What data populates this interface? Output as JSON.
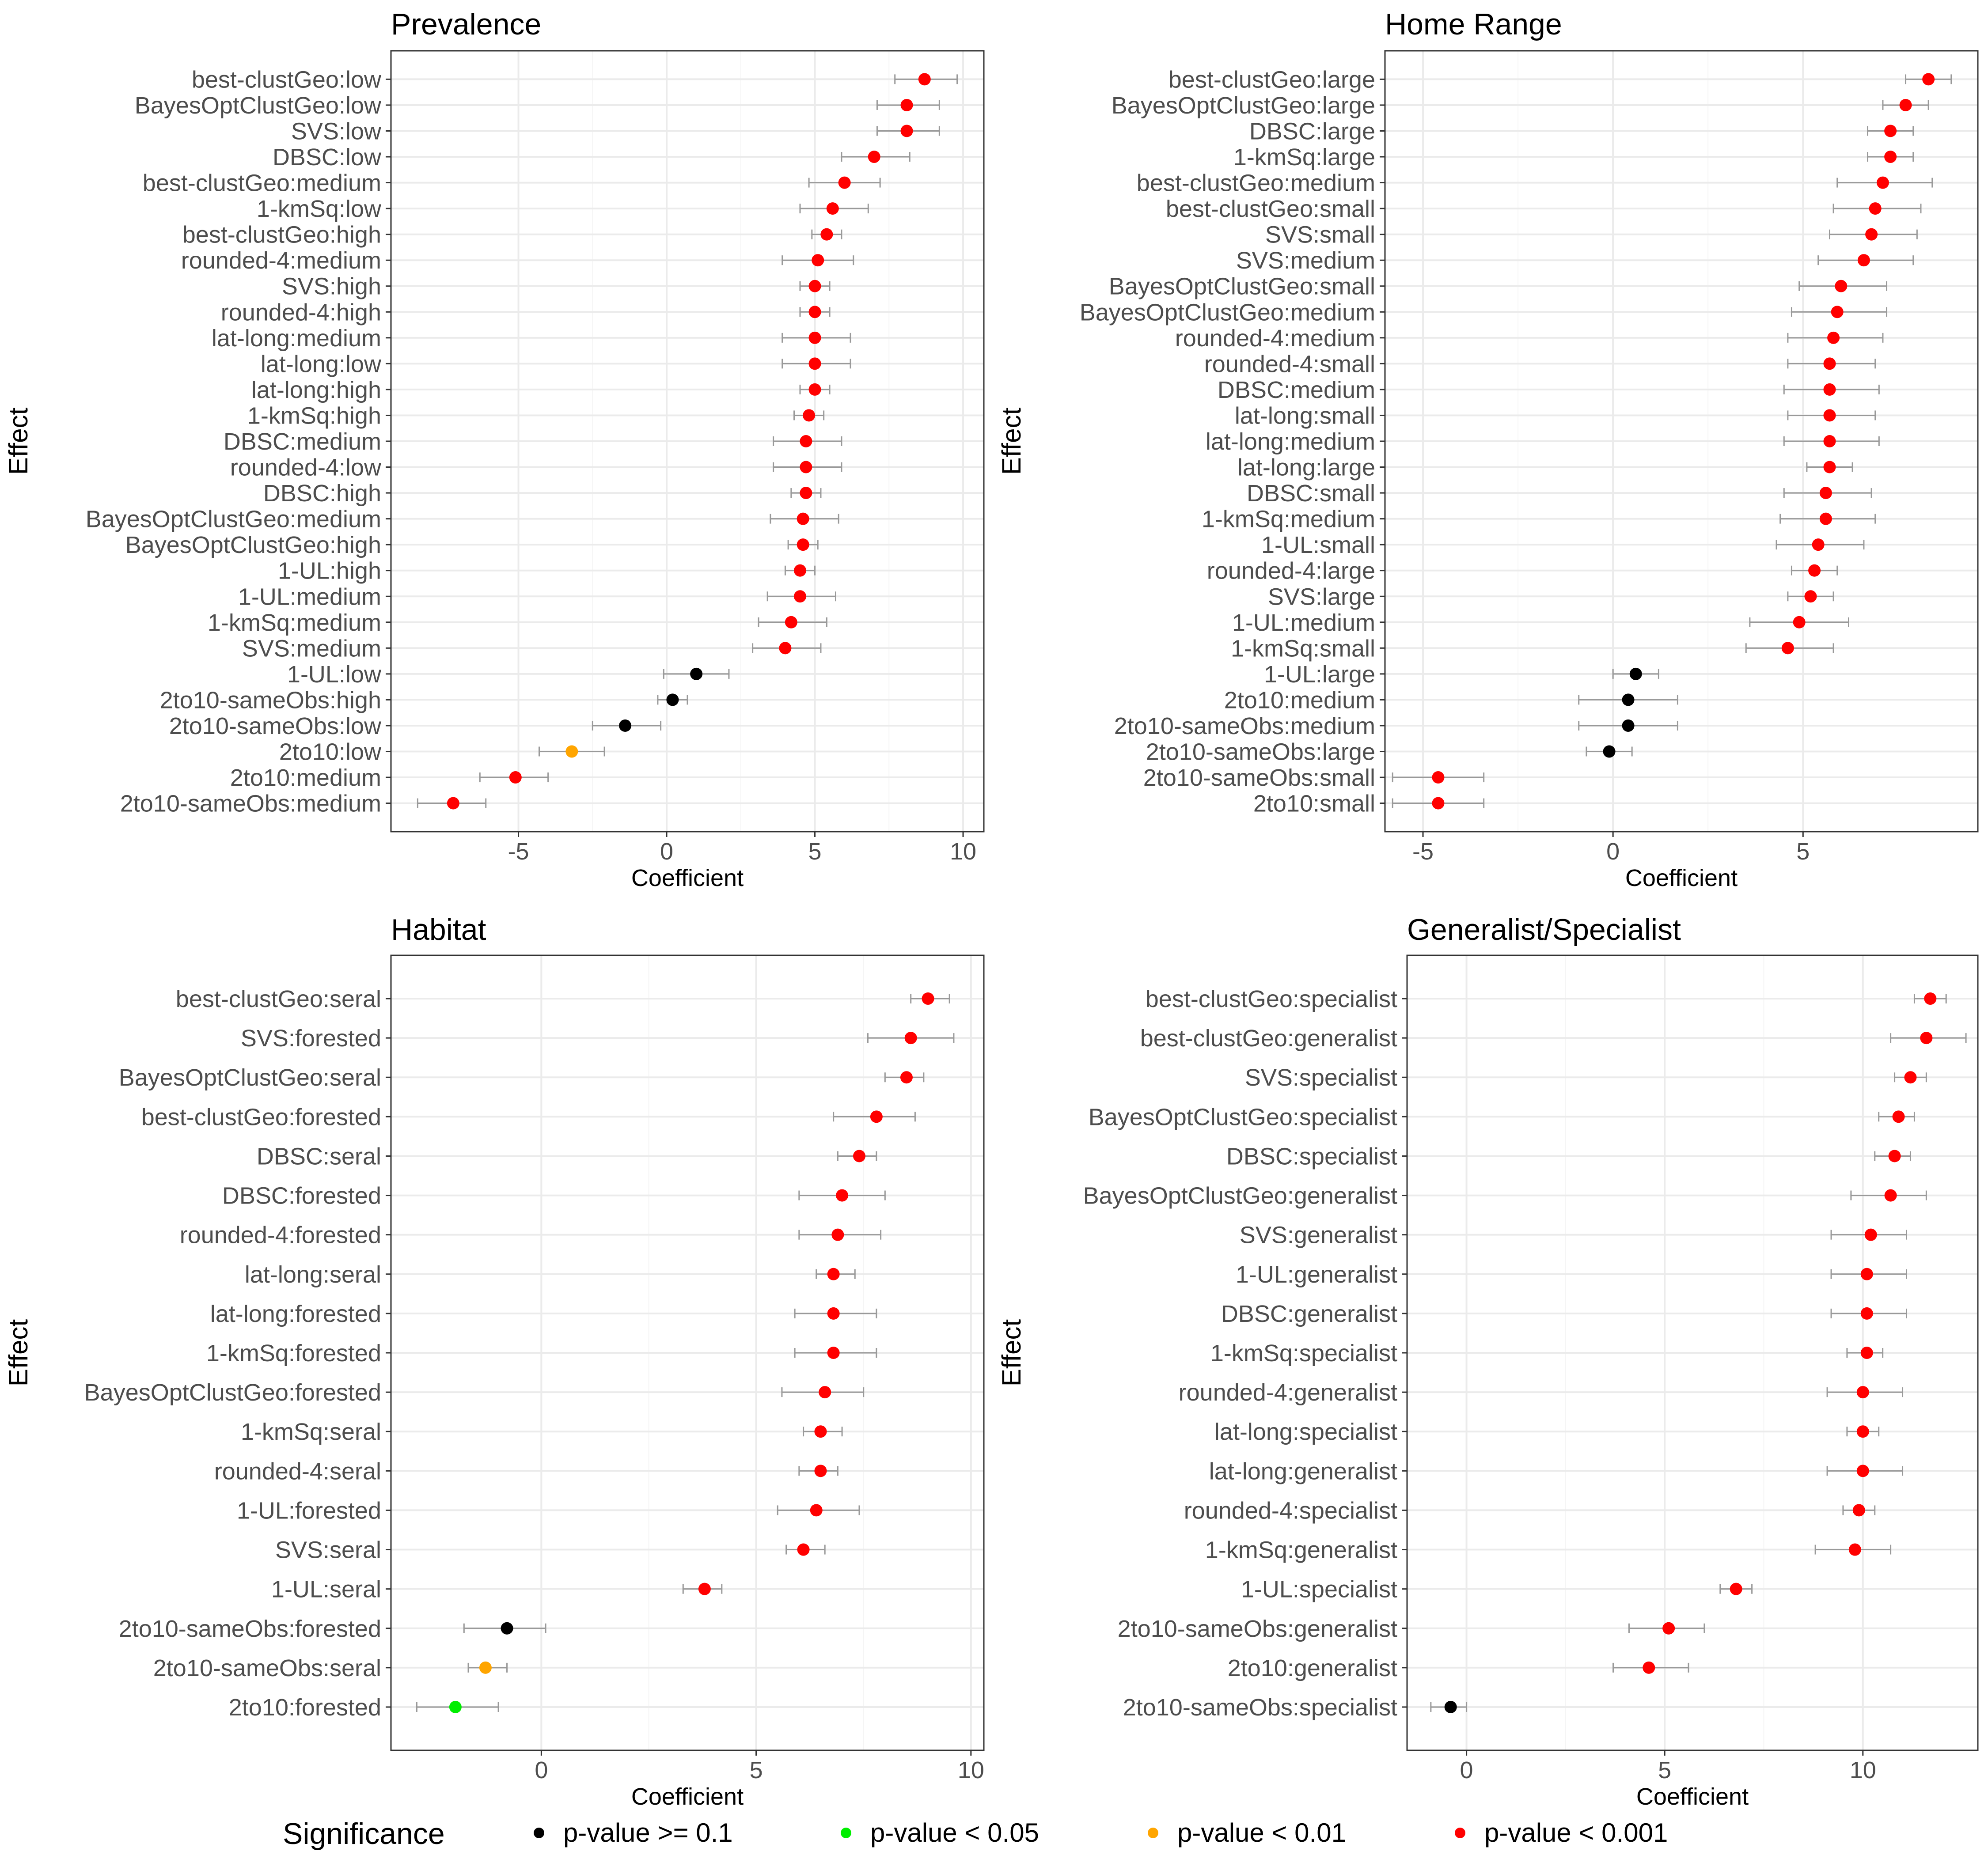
{
  "figure": {
    "legend": {
      "title": "Significance",
      "items": [
        {
          "label": "p-value >= 0.1",
          "color": "#000000"
        },
        {
          "label": "p-value < 0.05",
          "color": "#00ee00"
        },
        {
          "label": "p-value < 0.01",
          "color": "#ffa500"
        },
        {
          "label": "p-value < 0.001",
          "color": "#ff0000"
        }
      ]
    },
    "colors": {
      "panel_border": "#333333",
      "grid_major": "#ebebeb",
      "grid_minor": "#f5f5f5",
      "errorbar": "#999999",
      "text": "#4d4d4d",
      "axis_title": "#000000"
    }
  },
  "chart_data": [
    {
      "type": "scatter",
      "title": "Prevalence",
      "xlabel": "Coefficient",
      "ylabel": "Effect",
      "xlim": [
        -9.3,
        10.7
      ],
      "xticks": [
        -5,
        0,
        5,
        10
      ],
      "xtick_labels": [
        "-5",
        "0",
        "5",
        "10"
      ],
      "points": [
        {
          "label": "best-clustGeo:low",
          "est": 8.7,
          "lo": 7.7,
          "hi": 9.8,
          "sig": "p<0.001"
        },
        {
          "label": "BayesOptClustGeo:low",
          "est": 8.1,
          "lo": 7.1,
          "hi": 9.2,
          "sig": "p<0.001"
        },
        {
          "label": "SVS:low",
          "est": 8.1,
          "lo": 7.1,
          "hi": 9.2,
          "sig": "p<0.001"
        },
        {
          "label": "DBSC:low",
          "est": 7.0,
          "lo": 5.9,
          "hi": 8.2,
          "sig": "p<0.001"
        },
        {
          "label": "best-clustGeo:medium",
          "est": 6.0,
          "lo": 4.8,
          "hi": 7.2,
          "sig": "p<0.001"
        },
        {
          "label": "1-kmSq:low",
          "est": 5.6,
          "lo": 4.5,
          "hi": 6.8,
          "sig": "p<0.001"
        },
        {
          "label": "best-clustGeo:high",
          "est": 5.4,
          "lo": 4.9,
          "hi": 5.9,
          "sig": "p<0.001"
        },
        {
          "label": "rounded-4:medium",
          "est": 5.1,
          "lo": 3.9,
          "hi": 6.3,
          "sig": "p<0.001"
        },
        {
          "label": "SVS:high",
          "est": 5.0,
          "lo": 4.5,
          "hi": 5.5,
          "sig": "p<0.001"
        },
        {
          "label": "rounded-4:high",
          "est": 5.0,
          "lo": 4.5,
          "hi": 5.5,
          "sig": "p<0.001"
        },
        {
          "label": "lat-long:medium",
          "est": 5.0,
          "lo": 3.9,
          "hi": 6.2,
          "sig": "p<0.001"
        },
        {
          "label": "lat-long:low",
          "est": 5.0,
          "lo": 3.9,
          "hi": 6.2,
          "sig": "p<0.001"
        },
        {
          "label": "lat-long:high",
          "est": 5.0,
          "lo": 4.5,
          "hi": 5.5,
          "sig": "p<0.001"
        },
        {
          "label": "1-kmSq:high",
          "est": 4.8,
          "lo": 4.3,
          "hi": 5.3,
          "sig": "p<0.001"
        },
        {
          "label": "DBSC:medium",
          "est": 4.7,
          "lo": 3.6,
          "hi": 5.9,
          "sig": "p<0.001"
        },
        {
          "label": "rounded-4:low",
          "est": 4.7,
          "lo": 3.6,
          "hi": 5.9,
          "sig": "p<0.001"
        },
        {
          "label": "DBSC:high",
          "est": 4.7,
          "lo": 4.2,
          "hi": 5.2,
          "sig": "p<0.001"
        },
        {
          "label": "BayesOptClustGeo:medium",
          "est": 4.6,
          "lo": 3.5,
          "hi": 5.8,
          "sig": "p<0.001"
        },
        {
          "label": "BayesOptClustGeo:high",
          "est": 4.6,
          "lo": 4.1,
          "hi": 5.1,
          "sig": "p<0.001"
        },
        {
          "label": "1-UL:high",
          "est": 4.5,
          "lo": 4.0,
          "hi": 5.0,
          "sig": "p<0.001"
        },
        {
          "label": "1-UL:medium",
          "est": 4.5,
          "lo": 3.4,
          "hi": 5.7,
          "sig": "p<0.001"
        },
        {
          "label": "1-kmSq:medium",
          "est": 4.2,
          "lo": 3.1,
          "hi": 5.4,
          "sig": "p<0.001"
        },
        {
          "label": "SVS:medium",
          "est": 4.0,
          "lo": 2.9,
          "hi": 5.2,
          "sig": "p<0.001"
        },
        {
          "label": "1-UL:low",
          "est": 1.0,
          "lo": -0.1,
          "hi": 2.1,
          "sig": "p>=0.1"
        },
        {
          "label": "2to10-sameObs:high",
          "est": 0.2,
          "lo": -0.3,
          "hi": 0.7,
          "sig": "p>=0.1"
        },
        {
          "label": "2to10-sameObs:low",
          "est": -1.4,
          "lo": -2.5,
          "hi": -0.2,
          "sig": "p>=0.1"
        },
        {
          "label": "2to10:low",
          "est": -3.2,
          "lo": -4.3,
          "hi": -2.1,
          "sig": "p<0.01"
        },
        {
          "label": "2to10:medium",
          "est": -5.1,
          "lo": -6.3,
          "hi": -4.0,
          "sig": "p<0.001"
        },
        {
          "label": "2to10-sameObs:medium",
          "est": -7.2,
          "lo": -8.4,
          "hi": -6.1,
          "sig": "p<0.001"
        }
      ]
    },
    {
      "type": "scatter",
      "title": "Home Range",
      "xlabel": "Coefficient",
      "ylabel": "Effect",
      "xlim": [
        -6.0,
        9.6
      ],
      "xticks": [
        -5,
        0,
        5
      ],
      "xtick_labels": [
        "-5",
        "0",
        "5"
      ],
      "points": [
        {
          "label": "best-clustGeo:large",
          "est": 8.3,
          "lo": 7.7,
          "hi": 8.9,
          "sig": "p<0.001"
        },
        {
          "label": "BayesOptClustGeo:large",
          "est": 7.7,
          "lo": 7.1,
          "hi": 8.3,
          "sig": "p<0.001"
        },
        {
          "label": "DBSC:large",
          "est": 7.3,
          "lo": 6.7,
          "hi": 7.9,
          "sig": "p<0.001"
        },
        {
          "label": "1-kmSq:large",
          "est": 7.3,
          "lo": 6.7,
          "hi": 7.9,
          "sig": "p<0.001"
        },
        {
          "label": "best-clustGeo:medium",
          "est": 7.1,
          "lo": 5.9,
          "hi": 8.4,
          "sig": "p<0.001"
        },
        {
          "label": "best-clustGeo:small",
          "est": 6.9,
          "lo": 5.8,
          "hi": 8.1,
          "sig": "p<0.001"
        },
        {
          "label": "SVS:small",
          "est": 6.8,
          "lo": 5.7,
          "hi": 8.0,
          "sig": "p<0.001"
        },
        {
          "label": "SVS:medium",
          "est": 6.6,
          "lo": 5.4,
          "hi": 7.9,
          "sig": "p<0.001"
        },
        {
          "label": "BayesOptClustGeo:small",
          "est": 6.0,
          "lo": 4.9,
          "hi": 7.2,
          "sig": "p<0.001"
        },
        {
          "label": "BayesOptClustGeo:medium",
          "est": 5.9,
          "lo": 4.7,
          "hi": 7.2,
          "sig": "p<0.001"
        },
        {
          "label": "rounded-4:medium",
          "est": 5.8,
          "lo": 4.6,
          "hi": 7.1,
          "sig": "p<0.001"
        },
        {
          "label": "rounded-4:small",
          "est": 5.7,
          "lo": 4.6,
          "hi": 6.9,
          "sig": "p<0.001"
        },
        {
          "label": "DBSC:medium",
          "est": 5.7,
          "lo": 4.5,
          "hi": 7.0,
          "sig": "p<0.001"
        },
        {
          "label": "lat-long:small",
          "est": 5.7,
          "lo": 4.6,
          "hi": 6.9,
          "sig": "p<0.001"
        },
        {
          "label": "lat-long:medium",
          "est": 5.7,
          "lo": 4.5,
          "hi": 7.0,
          "sig": "p<0.001"
        },
        {
          "label": "lat-long:large",
          "est": 5.7,
          "lo": 5.1,
          "hi": 6.3,
          "sig": "p<0.001"
        },
        {
          "label": "DBSC:small",
          "est": 5.6,
          "lo": 4.5,
          "hi": 6.8,
          "sig": "p<0.001"
        },
        {
          "label": "1-kmSq:medium",
          "est": 5.6,
          "lo": 4.4,
          "hi": 6.9,
          "sig": "p<0.001"
        },
        {
          "label": "1-UL:small",
          "est": 5.4,
          "lo": 4.3,
          "hi": 6.6,
          "sig": "p<0.001"
        },
        {
          "label": "rounded-4:large",
          "est": 5.3,
          "lo": 4.7,
          "hi": 5.9,
          "sig": "p<0.001"
        },
        {
          "label": "SVS:large",
          "est": 5.2,
          "lo": 4.6,
          "hi": 5.8,
          "sig": "p<0.001"
        },
        {
          "label": "1-UL:medium",
          "est": 4.9,
          "lo": 3.6,
          "hi": 6.2,
          "sig": "p<0.001"
        },
        {
          "label": "1-kmSq:small",
          "est": 4.6,
          "lo": 3.5,
          "hi": 5.8,
          "sig": "p<0.001"
        },
        {
          "label": "1-UL:large",
          "est": 0.6,
          "lo": 0.0,
          "hi": 1.2,
          "sig": "p>=0.1"
        },
        {
          "label": "2to10:medium",
          "est": 0.4,
          "lo": -0.9,
          "hi": 1.7,
          "sig": "p>=0.1"
        },
        {
          "label": "2to10-sameObs:medium",
          "est": 0.4,
          "lo": -0.9,
          "hi": 1.7,
          "sig": "p>=0.1"
        },
        {
          "label": "2to10-sameObs:large",
          "est": -0.1,
          "lo": -0.7,
          "hi": 0.5,
          "sig": "p>=0.1"
        },
        {
          "label": "2to10-sameObs:small",
          "est": -4.6,
          "lo": -5.8,
          "hi": -3.4,
          "sig": "p<0.001"
        },
        {
          "label": "2to10:small",
          "est": -4.6,
          "lo": -5.8,
          "hi": -3.4,
          "sig": "p<0.001"
        }
      ]
    },
    {
      "type": "scatter",
      "title": "Habitat",
      "xlabel": "Coefficient",
      "ylabel": "Effect",
      "xlim": [
        -3.5,
        10.3
      ],
      "xticks": [
        0,
        5,
        10
      ],
      "xtick_labels": [
        "0",
        "5",
        "10"
      ],
      "points": [
        {
          "label": "best-clustGeo:seral",
          "est": 9.0,
          "lo": 8.6,
          "hi": 9.5,
          "sig": "p<0.001"
        },
        {
          "label": "SVS:forested",
          "est": 8.6,
          "lo": 7.6,
          "hi": 9.6,
          "sig": "p<0.001"
        },
        {
          "label": "BayesOptClustGeo:seral",
          "est": 8.5,
          "lo": 8.0,
          "hi": 8.9,
          "sig": "p<0.001"
        },
        {
          "label": "best-clustGeo:forested",
          "est": 7.8,
          "lo": 6.8,
          "hi": 8.7,
          "sig": "p<0.001"
        },
        {
          "label": "DBSC:seral",
          "est": 7.4,
          "lo": 6.9,
          "hi": 7.8,
          "sig": "p<0.001"
        },
        {
          "label": "DBSC:forested",
          "est": 7.0,
          "lo": 6.0,
          "hi": 8.0,
          "sig": "p<0.001"
        },
        {
          "label": "rounded-4:forested",
          "est": 6.9,
          "lo": 6.0,
          "hi": 7.9,
          "sig": "p<0.001"
        },
        {
          "label": "lat-long:seral",
          "est": 6.8,
          "lo": 6.4,
          "hi": 7.3,
          "sig": "p<0.001"
        },
        {
          "label": "lat-long:forested",
          "est": 6.8,
          "lo": 5.9,
          "hi": 7.8,
          "sig": "p<0.001"
        },
        {
          "label": "1-kmSq:forested",
          "est": 6.8,
          "lo": 5.9,
          "hi": 7.8,
          "sig": "p<0.001"
        },
        {
          "label": "BayesOptClustGeo:forested",
          "est": 6.6,
          "lo": 5.6,
          "hi": 7.5,
          "sig": "p<0.001"
        },
        {
          "label": "1-kmSq:seral",
          "est": 6.5,
          "lo": 6.1,
          "hi": 7.0,
          "sig": "p<0.001"
        },
        {
          "label": "rounded-4:seral",
          "est": 6.5,
          "lo": 6.0,
          "hi": 6.9,
          "sig": "p<0.001"
        },
        {
          "label": "1-UL:forested",
          "est": 6.4,
          "lo": 5.5,
          "hi": 7.4,
          "sig": "p<0.001"
        },
        {
          "label": "SVS:seral",
          "est": 6.1,
          "lo": 5.7,
          "hi": 6.6,
          "sig": "p<0.001"
        },
        {
          "label": "1-UL:seral",
          "est": 3.8,
          "lo": 3.3,
          "hi": 4.2,
          "sig": "p<0.001"
        },
        {
          "label": "2to10-sameObs:forested",
          "est": -0.8,
          "lo": -1.8,
          "hi": 0.1,
          "sig": "p>=0.1"
        },
        {
          "label": "2to10-sameObs:seral",
          "est": -1.3,
          "lo": -1.7,
          "hi": -0.8,
          "sig": "p<0.01"
        },
        {
          "label": "2to10:forested",
          "est": -2.0,
          "lo": -2.9,
          "hi": -1.0,
          "sig": "p<0.05"
        }
      ]
    },
    {
      "type": "scatter",
      "title": "Generalist/Specialist",
      "xlabel": "Coefficient",
      "ylabel": "Effect",
      "xlim": [
        -1.5,
        12.9
      ],
      "xticks": [
        0,
        5,
        10
      ],
      "xtick_labels": [
        "0",
        "5",
        "10"
      ],
      "points": [
        {
          "label": "best-clustGeo:specialist",
          "est": 11.7,
          "lo": 11.3,
          "hi": 12.1,
          "sig": "p<0.001"
        },
        {
          "label": "best-clustGeo:generalist",
          "est": 11.6,
          "lo": 10.7,
          "hi": 12.6,
          "sig": "p<0.001"
        },
        {
          "label": "SVS:specialist",
          "est": 11.2,
          "lo": 10.8,
          "hi": 11.6,
          "sig": "p<0.001"
        },
        {
          "label": "BayesOptClustGeo:specialist",
          "est": 10.9,
          "lo": 10.4,
          "hi": 11.3,
          "sig": "p<0.001"
        },
        {
          "label": "DBSC:specialist",
          "est": 10.8,
          "lo": 10.3,
          "hi": 11.2,
          "sig": "p<0.001"
        },
        {
          "label": "BayesOptClustGeo:generalist",
          "est": 10.7,
          "lo": 9.7,
          "hi": 11.6,
          "sig": "p<0.001"
        },
        {
          "label": "SVS:generalist",
          "est": 10.2,
          "lo": 9.2,
          "hi": 11.1,
          "sig": "p<0.001"
        },
        {
          "label": "1-UL:generalist",
          "est": 10.1,
          "lo": 9.2,
          "hi": 11.1,
          "sig": "p<0.001"
        },
        {
          "label": "DBSC:generalist",
          "est": 10.1,
          "lo": 9.2,
          "hi": 11.1,
          "sig": "p<0.001"
        },
        {
          "label": "1-kmSq:specialist",
          "est": 10.1,
          "lo": 9.6,
          "hi": 10.5,
          "sig": "p<0.001"
        },
        {
          "label": "rounded-4:generalist",
          "est": 10.0,
          "lo": 9.1,
          "hi": 11.0,
          "sig": "p<0.001"
        },
        {
          "label": "lat-long:specialist",
          "est": 10.0,
          "lo": 9.6,
          "hi": 10.4,
          "sig": "p<0.001"
        },
        {
          "label": "lat-long:generalist",
          "est": 10.0,
          "lo": 9.1,
          "hi": 11.0,
          "sig": "p<0.001"
        },
        {
          "label": "rounded-4:specialist",
          "est": 9.9,
          "lo": 9.5,
          "hi": 10.3,
          "sig": "p<0.001"
        },
        {
          "label": "1-kmSq:generalist",
          "est": 9.8,
          "lo": 8.8,
          "hi": 10.7,
          "sig": "p<0.001"
        },
        {
          "label": "1-UL:specialist",
          "est": 6.8,
          "lo": 6.4,
          "hi": 7.2,
          "sig": "p<0.001"
        },
        {
          "label": "2to10-sameObs:generalist",
          "est": 5.1,
          "lo": 4.1,
          "hi": 6.0,
          "sig": "p<0.001"
        },
        {
          "label": "2to10:generalist",
          "est": 4.6,
          "lo": 3.7,
          "hi": 5.6,
          "sig": "p<0.001"
        },
        {
          "label": "2to10-sameObs:specialist",
          "est": -0.4,
          "lo": -0.9,
          "hi": 0.0,
          "sig": "p>=0.1"
        }
      ]
    }
  ]
}
